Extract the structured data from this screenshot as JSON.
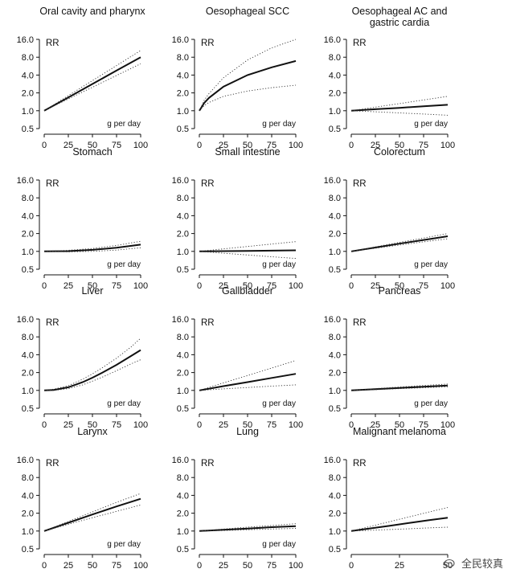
{
  "watermark": {
    "text": "全民较真"
  },
  "chart_data": [
    {
      "type": "line",
      "title": "Oral cavity and pharynx",
      "ylabel": "RR",
      "xlabel": "g per day",
      "yscale": "log",
      "yticks": [
        "0.5",
        "1.0",
        "2.0",
        "4.0",
        "8.0",
        "16.0"
      ],
      "xticks": [
        "0",
        "25",
        "50",
        "75",
        "100"
      ],
      "xlim": [
        0,
        100
      ],
      "x": [
        0,
        25,
        50,
        75,
        100
      ],
      "series": [
        {
          "role": "estimate",
          "values": [
            1.0,
            1.68,
            2.83,
            4.76,
            8.0
          ]
        },
        {
          "role": "lower",
          "values": [
            1.0,
            1.58,
            2.49,
            3.94,
            6.2
          ]
        },
        {
          "role": "upper",
          "values": [
            1.0,
            1.8,
            3.22,
            5.79,
            10.4
          ]
        }
      ]
    },
    {
      "type": "line",
      "title": "Oesophageal SCC",
      "ylabel": "RR",
      "xlabel": "g per day",
      "yscale": "log",
      "yticks": [
        "0.5",
        "1.0",
        "2.0",
        "4.0",
        "8.0",
        "16.0"
      ],
      "xticks": [
        "0",
        "25",
        "50",
        "75",
        "100"
      ],
      "xlim": [
        0,
        100
      ],
      "x": [
        0,
        5,
        10,
        25,
        50,
        75,
        100
      ],
      "series": [
        {
          "role": "estimate",
          "values": [
            1.0,
            1.35,
            1.65,
            2.55,
            4.0,
            5.4,
            6.9
          ]
        },
        {
          "role": "lower",
          "values": [
            1.0,
            1.22,
            1.38,
            1.75,
            2.15,
            2.45,
            2.7
          ]
        },
        {
          "role": "upper",
          "values": [
            1.0,
            1.5,
            1.95,
            3.6,
            7.2,
            11.5,
            16.0
          ]
        }
      ]
    },
    {
      "type": "line",
      "title": "Oesophageal AC and gastric cardia",
      "ylabel": "RR",
      "xlabel": "g per day",
      "yscale": "log",
      "yticks": [
        "0.5",
        "1.0",
        "2.0",
        "4.0",
        "8.0",
        "16.0"
      ],
      "xticks": [
        "0",
        "25",
        "50",
        "75",
        "100"
      ],
      "xlim": [
        0,
        100
      ],
      "x": [
        0,
        25,
        50,
        75,
        100
      ],
      "series": [
        {
          "role": "estimate",
          "values": [
            1.0,
            1.06,
            1.12,
            1.19,
            1.26
          ]
        },
        {
          "role": "lower",
          "values": [
            1.0,
            0.96,
            0.92,
            0.88,
            0.84
          ]
        },
        {
          "role": "upper",
          "values": [
            1.0,
            1.15,
            1.32,
            1.52,
            1.75
          ]
        }
      ]
    },
    {
      "type": "line",
      "title": "Stomach",
      "ylabel": "RR",
      "xlabel": "g per day",
      "yscale": "log",
      "yticks": [
        "0.5",
        "1.0",
        "2.0",
        "4.0",
        "8.0",
        "16.0"
      ],
      "xticks": [
        "0",
        "25",
        "50",
        "75",
        "100"
      ],
      "xlim": [
        0,
        100
      ],
      "x": [
        0,
        25,
        50,
        75,
        100
      ],
      "series": [
        {
          "role": "estimate",
          "values": [
            1.0,
            1.01,
            1.06,
            1.15,
            1.3
          ]
        },
        {
          "role": "lower",
          "values": [
            1.0,
            0.98,
            1.0,
            1.05,
            1.15
          ]
        },
        {
          "role": "upper",
          "values": [
            1.0,
            1.04,
            1.12,
            1.26,
            1.48
          ]
        }
      ]
    },
    {
      "type": "line",
      "title": "Small intestine",
      "ylabel": "RR",
      "xlabel": "g per day",
      "yscale": "log",
      "yticks": [
        "0.5",
        "1.0",
        "2.0",
        "4.0",
        "8.0",
        "16.0"
      ],
      "xticks": [
        "0",
        "25",
        "50",
        "75",
        "100"
      ],
      "xlim": [
        0,
        100
      ],
      "x": [
        0,
        25,
        50,
        75,
        100
      ],
      "series": [
        {
          "role": "estimate",
          "values": [
            1.0,
            1.01,
            1.02,
            1.03,
            1.04
          ]
        },
        {
          "role": "lower",
          "values": [
            1.0,
            0.93,
            0.87,
            0.81,
            0.76
          ]
        },
        {
          "role": "upper",
          "values": [
            1.0,
            1.1,
            1.21,
            1.33,
            1.46
          ]
        }
      ]
    },
    {
      "type": "line",
      "title": "Colorectum",
      "ylabel": "RR",
      "xlabel": "g per day",
      "yscale": "log",
      "yticks": [
        "0.5",
        "1.0",
        "2.0",
        "4.0",
        "8.0",
        "16.0"
      ],
      "xticks": [
        "0",
        "25",
        "50",
        "75",
        "100"
      ],
      "xlim": [
        0,
        100
      ],
      "x": [
        0,
        25,
        50,
        75,
        100
      ],
      "series": [
        {
          "role": "estimate",
          "values": [
            1.0,
            1.16,
            1.35,
            1.56,
            1.8
          ]
        },
        {
          "role": "lower",
          "values": [
            1.0,
            1.13,
            1.28,
            1.45,
            1.63
          ]
        },
        {
          "role": "upper",
          "values": [
            1.0,
            1.19,
            1.42,
            1.68,
            2.0
          ]
        }
      ]
    },
    {
      "type": "line",
      "title": "Liver",
      "ylabel": "RR",
      "xlabel": "g per day",
      "yscale": "log",
      "yticks": [
        "0.5",
        "1.0",
        "2.0",
        "4.0",
        "8.0",
        "16.0"
      ],
      "xticks": [
        "0",
        "25",
        "50",
        "75",
        "100"
      ],
      "xlim": [
        0,
        100
      ],
      "x": [
        0,
        10,
        25,
        40,
        50,
        60,
        75,
        90,
        100
      ],
      "series": [
        {
          "role": "estimate",
          "values": [
            1.0,
            1.02,
            1.13,
            1.38,
            1.64,
            1.98,
            2.7,
            3.8,
            4.8
          ]
        },
        {
          "role": "lower",
          "values": [
            1.0,
            1.0,
            1.07,
            1.24,
            1.43,
            1.67,
            2.15,
            2.8,
            3.3
          ]
        },
        {
          "role": "upper",
          "values": [
            1.0,
            1.05,
            1.2,
            1.55,
            1.9,
            2.4,
            3.5,
            5.4,
            7.6
          ]
        }
      ]
    },
    {
      "type": "line",
      "title": "Gallbladder",
      "ylabel": "RR",
      "xlabel": "g per day",
      "yscale": "log",
      "yticks": [
        "0.5",
        "1.0",
        "2.0",
        "4.0",
        "8.0",
        "16.0"
      ],
      "xticks": [
        "0",
        "25",
        "50",
        "75",
        "100"
      ],
      "xlim": [
        0,
        100
      ],
      "x": [
        0,
        25,
        50,
        75,
        100
      ],
      "series": [
        {
          "role": "estimate",
          "values": [
            1.0,
            1.18,
            1.38,
            1.62,
            1.9
          ]
        },
        {
          "role": "lower",
          "values": [
            1.0,
            1.06,
            1.12,
            1.18,
            1.24
          ]
        },
        {
          "role": "upper",
          "values": [
            1.0,
            1.34,
            1.78,
            2.38,
            3.2
          ]
        }
      ]
    },
    {
      "type": "line",
      "title": "Pancreas",
      "ylabel": "RR",
      "xlabel": "g per day",
      "yscale": "log",
      "yticks": [
        "0.5",
        "1.0",
        "2.0",
        "4.0",
        "8.0",
        "16.0"
      ],
      "xticks": [
        "0",
        "25",
        "50",
        "75",
        "100"
      ],
      "xlim": [
        0,
        100
      ],
      "x": [
        0,
        25,
        50,
        75,
        100
      ],
      "series": [
        {
          "role": "estimate",
          "values": [
            1.0,
            1.05,
            1.1,
            1.15,
            1.21
          ]
        },
        {
          "role": "lower",
          "values": [
            1.0,
            1.03,
            1.07,
            1.11,
            1.15
          ]
        },
        {
          "role": "upper",
          "values": [
            1.0,
            1.07,
            1.14,
            1.21,
            1.28
          ]
        }
      ]
    },
    {
      "type": "line",
      "title": "Larynx",
      "ylabel": "RR",
      "xlabel": "g per day",
      "yscale": "log",
      "yticks": [
        "0.5",
        "1.0",
        "2.0",
        "4.0",
        "8.0",
        "16.0"
      ],
      "xticks": [
        "0",
        "25",
        "50",
        "75",
        "100"
      ],
      "xlim": [
        0,
        100
      ],
      "x": [
        0,
        25,
        50,
        75,
        100
      ],
      "series": [
        {
          "role": "estimate",
          "values": [
            1.0,
            1.38,
            1.9,
            2.6,
            3.5
          ]
        },
        {
          "role": "lower",
          "values": [
            1.0,
            1.3,
            1.68,
            2.15,
            2.75
          ]
        },
        {
          "role": "upper",
          "values": [
            1.0,
            1.45,
            2.1,
            3.05,
            4.3
          ]
        }
      ]
    },
    {
      "type": "line",
      "title": "Lung",
      "ylabel": "RR",
      "xlabel": "g per day",
      "yscale": "log",
      "yticks": [
        "0.5",
        "1.0",
        "2.0",
        "4.0",
        "8.0",
        "16.0"
      ],
      "xticks": [
        "0",
        "25",
        "50",
        "75",
        "100"
      ],
      "xlim": [
        0,
        100
      ],
      "x": [
        0,
        25,
        50,
        75,
        100
      ],
      "series": [
        {
          "role": "estimate",
          "values": [
            1.0,
            1.05,
            1.1,
            1.16,
            1.21
          ]
        },
        {
          "role": "lower",
          "values": [
            1.0,
            1.02,
            1.05,
            1.08,
            1.11
          ]
        },
        {
          "role": "upper",
          "values": [
            1.0,
            1.08,
            1.16,
            1.24,
            1.33
          ]
        }
      ]
    },
    {
      "type": "line",
      "title": "Malignant melanoma",
      "ylabel": "RR",
      "xlabel": "",
      "yscale": "log",
      "yticks": [
        "0.5",
        "1.0",
        "2.0",
        "4.0",
        "8.0",
        "16.0"
      ],
      "xticks": [
        "0",
        "25",
        "50"
      ],
      "xlim": [
        0,
        50
      ],
      "x": [
        0,
        10,
        20,
        30,
        40,
        50
      ],
      "series": [
        {
          "role": "estimate",
          "values": [
            1.0,
            1.11,
            1.23,
            1.37,
            1.52,
            1.68
          ]
        },
        {
          "role": "lower",
          "values": [
            1.0,
            1.03,
            1.06,
            1.09,
            1.13,
            1.16
          ]
        },
        {
          "role": "upper",
          "values": [
            1.0,
            1.2,
            1.44,
            1.73,
            2.08,
            2.5
          ]
        }
      ]
    }
  ]
}
